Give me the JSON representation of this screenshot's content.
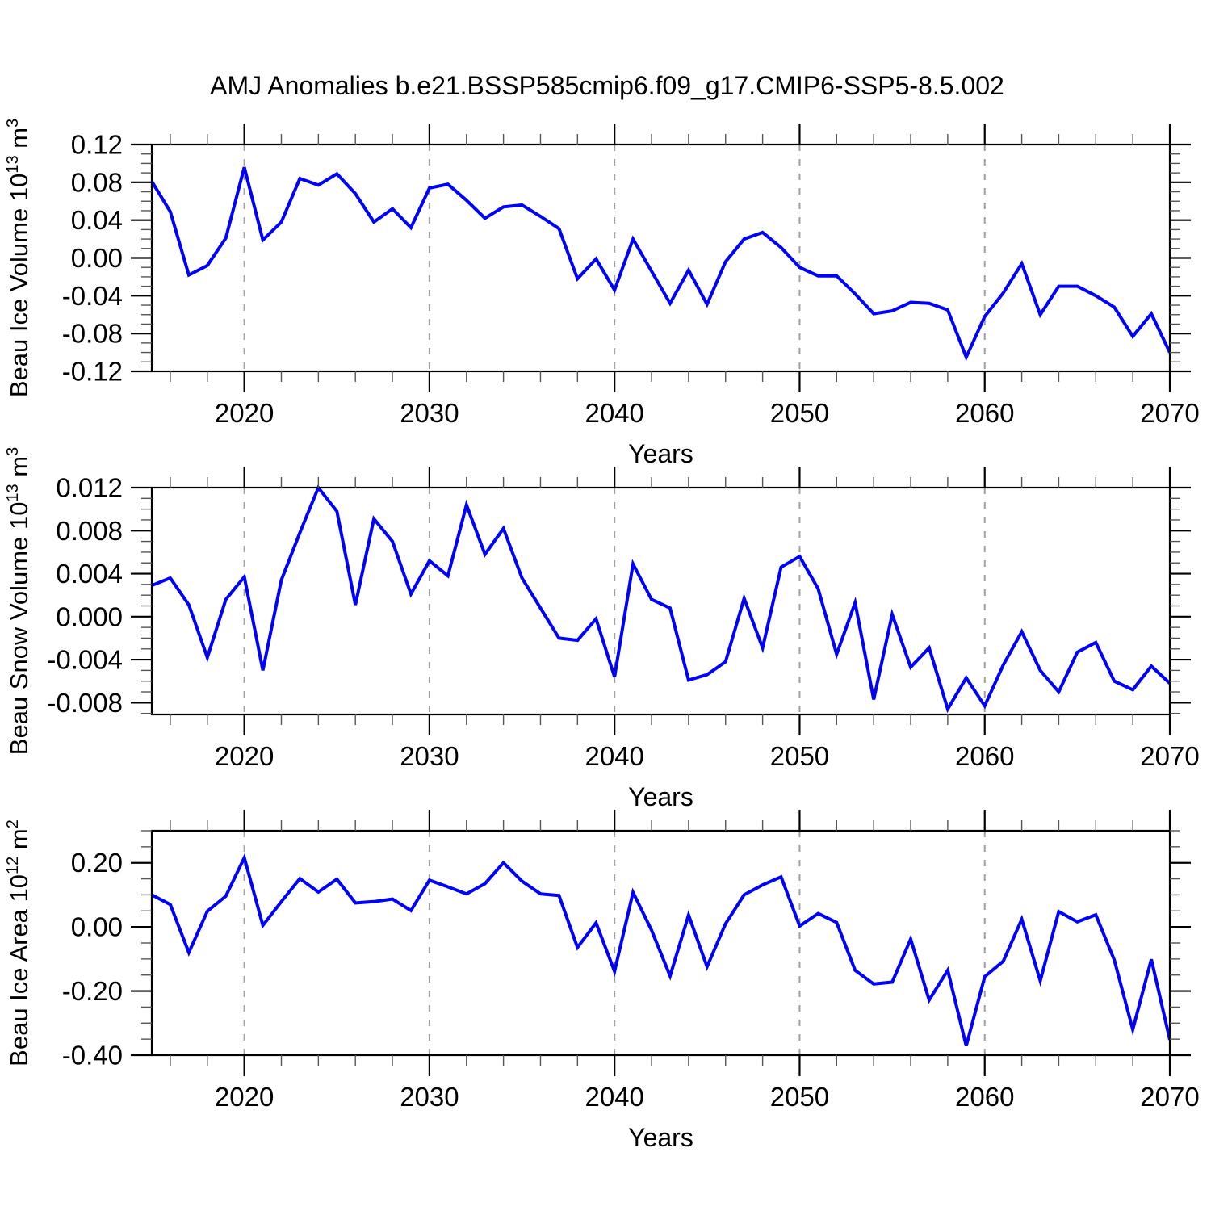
{
  "title": "AMJ Anomalies b.e21.BSSP585cmip6.f09_g17.CMIP6-SSP5-8.5.002",
  "colors": {
    "line": "#0000ff",
    "grid": "#a0a0a0",
    "frame": "#000000",
    "major_tick": "#000000",
    "minor_tick": "#555555"
  },
  "x": {
    "label": "Years",
    "range": [
      2015,
      2070
    ],
    "major_ticks": [
      2020,
      2030,
      2040,
      2050,
      2060,
      2070
    ],
    "major_tick_labels": [
      "2020",
      "2030",
      "2040",
      "2050",
      "2060",
      "2070"
    ],
    "minor_step": 2,
    "grid_lines": [
      2020,
      2030,
      2040,
      2050,
      2060
    ],
    "years": [
      2015,
      2016,
      2017,
      2018,
      2019,
      2020,
      2021,
      2022,
      2023,
      2024,
      2025,
      2026,
      2027,
      2028,
      2029,
      2030,
      2031,
      2032,
      2033,
      2034,
      2035,
      2036,
      2037,
      2038,
      2039,
      2040,
      2041,
      2042,
      2043,
      2044,
      2045,
      2046,
      2047,
      2048,
      2049,
      2050,
      2051,
      2052,
      2053,
      2054,
      2055,
      2056,
      2057,
      2058,
      2059,
      2060,
      2061,
      2062,
      2063,
      2064,
      2065,
      2066,
      2067,
      2068,
      2069,
      2070
    ]
  },
  "chart_data": [
    {
      "type": "line",
      "name": "beau-ice-volume",
      "ylabel": "Beau Ice Volume 10^13 m^3",
      "ylabel_segments": [
        [
          "t",
          "Beau Ice Volume 10"
        ],
        [
          "s",
          "13"
        ],
        [
          "t",
          " m"
        ],
        [
          "s",
          "3"
        ]
      ],
      "ylim": [
        -0.12,
        0.12
      ],
      "y_major_ticks": [
        0.12,
        0.08,
        0.04,
        0.0,
        -0.04,
        -0.08,
        -0.12
      ],
      "y_tick_labels": [
        "0.12",
        "0.08",
        "0.04",
        "0.00",
        "-0.04",
        "-0.08",
        "-0.12"
      ],
      "y_minor_step": 0.01,
      "values": [
        0.081,
        0.049,
        -0.018,
        -0.008,
        0.021,
        0.096,
        0.019,
        0.038,
        0.084,
        0.077,
        0.089,
        0.068,
        0.038,
        0.052,
        0.032,
        0.074,
        0.078,
        0.061,
        0.042,
        0.054,
        0.056,
        0.044,
        0.031,
        -0.022,
        -0.001,
        -0.034,
        0.02,
        -0.014,
        -0.048,
        -0.013,
        -0.049,
        -0.004,
        0.02,
        0.027,
        0.011,
        -0.01,
        -0.019,
        -0.019,
        -0.038,
        -0.059,
        -0.056,
        -0.047,
        -0.048,
        -0.055,
        -0.105,
        -0.062,
        -0.037,
        -0.006,
        -0.06,
        -0.03,
        -0.03,
        -0.04,
        -0.052,
        -0.083,
        -0.059,
        -0.1
      ]
    },
    {
      "type": "line",
      "name": "beau-snow-volume",
      "ylabel": "Beau Snow Volume 10^13 m^3",
      "ylabel_segments": [
        [
          "t",
          "Beau Snow Volume 10"
        ],
        [
          "s",
          "13"
        ],
        [
          "t",
          " m"
        ],
        [
          "s",
          "3"
        ]
      ],
      "ylim": [
        -0.0091,
        0.012
      ],
      "y_major_ticks": [
        0.012,
        0.008,
        0.004,
        0.0,
        -0.004,
        -0.008
      ],
      "y_tick_labels": [
        "0.012",
        "0.008",
        "0.004",
        "0.000",
        "-0.004",
        "-0.008"
      ],
      "y_minor_step": 0.001,
      "values": [
        0.0029,
        0.0036,
        0.0011,
        -0.0038,
        0.0016,
        0.0037,
        -0.005,
        0.0034,
        0.0078,
        0.012,
        0.0098,
        0.0011,
        0.0091,
        0.007,
        0.0021,
        0.0052,
        0.0038,
        0.0104,
        0.0058,
        0.0082,
        0.0036,
        0.0008,
        -0.002,
        -0.0022,
        -0.0002,
        -0.0056,
        0.0049,
        0.0016,
        0.0008,
        -0.0059,
        -0.0054,
        -0.0042,
        0.0017,
        -0.0029,
        0.0046,
        0.0056,
        0.0026,
        -0.0035,
        0.0013,
        -0.0077,
        0.0002,
        -0.0047,
        -0.0029,
        -0.0086,
        -0.0057,
        -0.0083,
        -0.0045,
        -0.0014,
        -0.005,
        -0.007,
        -0.0033,
        -0.0024,
        -0.006,
        -0.0068,
        -0.0046,
        -0.0062
      ]
    },
    {
      "type": "line",
      "name": "beau-ice-area",
      "ylabel": "Beau Ice Area 10^12 m^2",
      "ylabel_segments": [
        [
          "t",
          "Beau Ice Area 10"
        ],
        [
          "s",
          "12"
        ],
        [
          "t",
          " m"
        ],
        [
          "s",
          "2"
        ]
      ],
      "ylim": [
        -0.4,
        0.3
      ],
      "y_major_ticks": [
        0.2,
        0.0,
        -0.2,
        -0.4
      ],
      "y_tick_labels": [
        "0.20",
        "0.00",
        "-0.20",
        "-0.40"
      ],
      "y_minor_step": 0.05,
      "values": [
        0.1,
        0.07,
        -0.08,
        0.049,
        0.096,
        0.216,
        0.005,
        0.079,
        0.151,
        0.109,
        0.149,
        0.075,
        0.079,
        0.087,
        0.051,
        0.146,
        0.125,
        0.103,
        0.135,
        0.2,
        0.143,
        0.103,
        0.098,
        -0.064,
        0.013,
        -0.139,
        0.108,
        -0.01,
        -0.153,
        0.037,
        -0.124,
        0.01,
        0.1,
        0.131,
        0.156,
        0.003,
        0.042,
        0.014,
        -0.135,
        -0.178,
        -0.172,
        -0.038,
        -0.228,
        -0.135,
        -0.371,
        -0.155,
        -0.107,
        0.024,
        -0.168,
        0.048,
        0.016,
        0.038,
        -0.103,
        -0.32,
        -0.101,
        -0.352
      ]
    }
  ]
}
